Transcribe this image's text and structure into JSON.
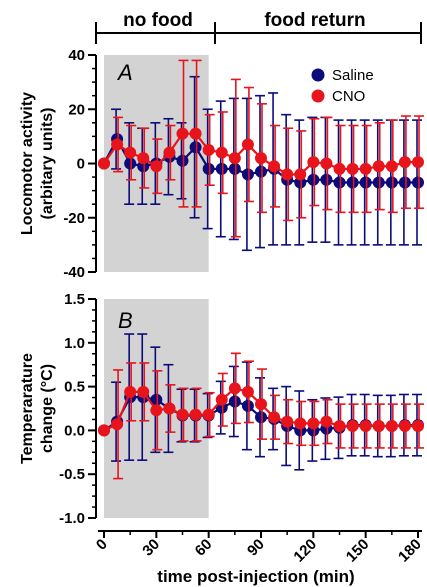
{
  "figure": {
    "condition_labels": [
      "no food",
      "food return"
    ],
    "x_axis_label": "time post-injection (min)",
    "x_ticks": [
      "0",
      "30",
      "60",
      "90",
      "120",
      "150",
      "180"
    ]
  },
  "colors": {
    "saline": "#0b0b7a",
    "cno": "#e8141b",
    "shade": "#d3d3d3"
  },
  "chart_data": [
    {
      "type": "line",
      "panel_label": "A",
      "ylabel": [
        "Locomotor activity",
        "(arbitary units)"
      ],
      "ylim": [
        -40,
        40
      ],
      "y_ticks": [
        "40",
        "20",
        "0",
        "-20",
        "-40"
      ],
      "xlim": [
        0,
        180
      ],
      "shaded_range": [
        0,
        60
      ],
      "legend": {
        "position": "top-right",
        "entries": [
          "Saline",
          "CNO"
        ]
      },
      "x": [
        0,
        7.5,
        15,
        22.5,
        30,
        37.5,
        45,
        52.5,
        60,
        67.5,
        75,
        82.5,
        90,
        97.5,
        105,
        112.5,
        120,
        127.5,
        135,
        142.5,
        150,
        157.5,
        165,
        172.5,
        180
      ],
      "series": [
        {
          "name": "Saline",
          "color": "#0b0b7a",
          "values": [
            0,
            9,
            0,
            -1,
            0,
            2.5,
            1,
            6,
            -2,
            -2,
            -2,
            -4,
            -3,
            -2,
            -6,
            -7,
            -6,
            -6,
            -7,
            -7,
            -7,
            -7,
            -7,
            -7,
            -7
          ],
          "errors": [
            0,
            11,
            15,
            14,
            15,
            14,
            14,
            26,
            22,
            25,
            26,
            28,
            28,
            28,
            24,
            23,
            23,
            23,
            23,
            23,
            23,
            23,
            23,
            23,
            23
          ]
        },
        {
          "name": "CNO",
          "color": "#e8141b",
          "values": [
            0,
            7,
            4,
            2,
            -1,
            4,
            11,
            11,
            5,
            4,
            2,
            7,
            2,
            -1,
            -4,
            -4,
            0.5,
            0,
            -2,
            -2,
            -2,
            -1,
            -1,
            0.5,
            0.5
          ],
          "errors": [
            0,
            10,
            10,
            11,
            10,
            10,
            27,
            27,
            13,
            15,
            29,
            21,
            20,
            15,
            17,
            16,
            16,
            17,
            16,
            16,
            16,
            16,
            17,
            17,
            17
          ]
        }
      ]
    },
    {
      "type": "line",
      "panel_label": "B",
      "ylabel": [
        "Temperarature",
        "change (°C)"
      ],
      "ylim": [
        -1.0,
        1.5
      ],
      "y_ticks": [
        "1.5",
        "1.0",
        "0.5",
        "0.0",
        "-0.5",
        "-1.0"
      ],
      "xlim": [
        0,
        180
      ],
      "shaded_range": [
        0,
        60
      ],
      "x": [
        0,
        7.5,
        15,
        22.5,
        30,
        37.5,
        45,
        52.5,
        60,
        67.5,
        75,
        82.5,
        90,
        97.5,
        105,
        112.5,
        120,
        127.5,
        135,
        142.5,
        150,
        157.5,
        165,
        172.5,
        180
      ],
      "series": [
        {
          "name": "Saline",
          "color": "#0b0b7a",
          "values": [
            0,
            0.1,
            0.38,
            0.38,
            0.35,
            0.25,
            0.17,
            0.17,
            0.17,
            0.26,
            0.33,
            0.28,
            0.15,
            0.13,
            0.05,
            0.0,
            0.0,
            0.02,
            0.03,
            0.06,
            0.06,
            0.05,
            0.05,
            0.06,
            0.06
          ],
          "errors": [
            0,
            0.45,
            0.72,
            0.72,
            0.6,
            0.5,
            0.3,
            0.3,
            0.25,
            0.3,
            0.4,
            0.5,
            0.45,
            0.35,
            0.45,
            0.45,
            0.35,
            0.35,
            0.35,
            0.35,
            0.35,
            0.35,
            0.35,
            0.35,
            0.35
          ]
        },
        {
          "name": "CNO",
          "color": "#e8141b",
          "values": [
            0,
            0.07,
            0.44,
            0.44,
            0.23,
            0.25,
            0.18,
            0.18,
            0.18,
            0.35,
            0.48,
            0.44,
            0.3,
            0.15,
            0.1,
            0.08,
            0.08,
            0.1,
            0.05,
            0.05,
            0.05,
            0.05,
            0.05,
            0.05,
            0.05
          ],
          "errors": [
            0,
            0.62,
            0.33,
            0.33,
            0.45,
            0.27,
            0.3,
            0.3,
            0.25,
            0.3,
            0.4,
            0.35,
            0.4,
            0.25,
            0.25,
            0.25,
            0.25,
            0.25,
            0.25,
            0.25,
            0.25,
            0.25,
            0.25,
            0.25,
            0.25
          ]
        }
      ]
    }
  ]
}
